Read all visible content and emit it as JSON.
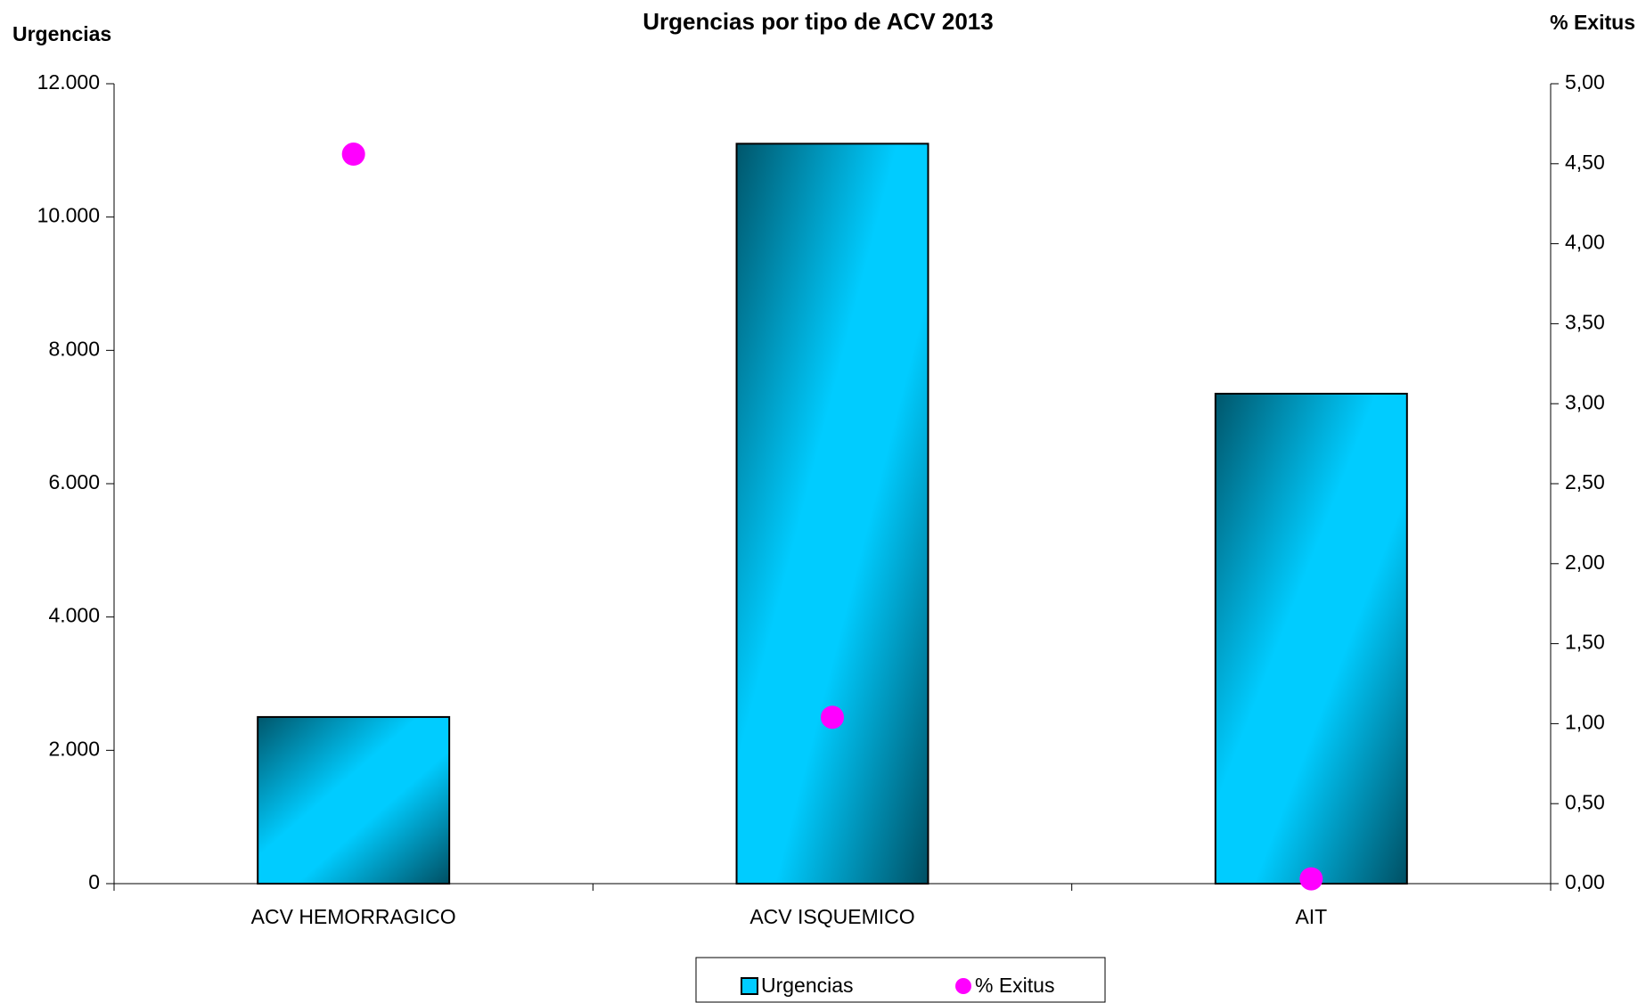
{
  "chart_data": {
    "type": "bar",
    "title": "Urgencias por tipo de ACV  2013",
    "y_label": "Urgencias",
    "y2_label": "% Exitus",
    "categories": [
      "ACV HEMORRAGICO",
      "ACV ISQUEMICO",
      "AIT"
    ],
    "series": [
      {
        "name": "Urgencias",
        "type": "bar",
        "color": "#00ccff",
        "values": [
          2500,
          11100,
          7350
        ]
      },
      {
        "name": "% Exitus",
        "type": "scatter",
        "axis": "y2",
        "color": "#ff00ff",
        "values": [
          4.56,
          1.04,
          0.03
        ]
      }
    ],
    "ylim": [
      0,
      12000
    ],
    "yticks": [
      0,
      {
        "value": 2000,
        "label": "2.000"
      },
      {
        "value": 4000,
        "label": "4.000"
      },
      {
        "value": 6000,
        "label": "6.000"
      },
      {
        "value": 8000,
        "label": "8.000"
      },
      {
        "value": 10000,
        "label": "10.000"
      },
      {
        "value": 12000,
        "label": "12.000"
      }
    ],
    "y2lim": [
      0,
      5
    ],
    "y2ticks": [
      {
        "value": 0,
        "label": "0,00"
      },
      {
        "value": 0.5,
        "label": "0,50"
      },
      {
        "value": 1,
        "label": "1,00"
      },
      {
        "value": 1.5,
        "label": "1,50"
      },
      {
        "value": 2,
        "label": "2,00"
      },
      {
        "value": 2.5,
        "label": "2,50"
      },
      {
        "value": 3,
        "label": "3,00"
      },
      {
        "value": 3.5,
        "label": "3,50"
      },
      {
        "value": 4,
        "label": "4,00"
      },
      {
        "value": 4.5,
        "label": "4,50"
      },
      {
        "value": 5,
        "label": "5,00"
      }
    ],
    "legend": "bottom"
  }
}
